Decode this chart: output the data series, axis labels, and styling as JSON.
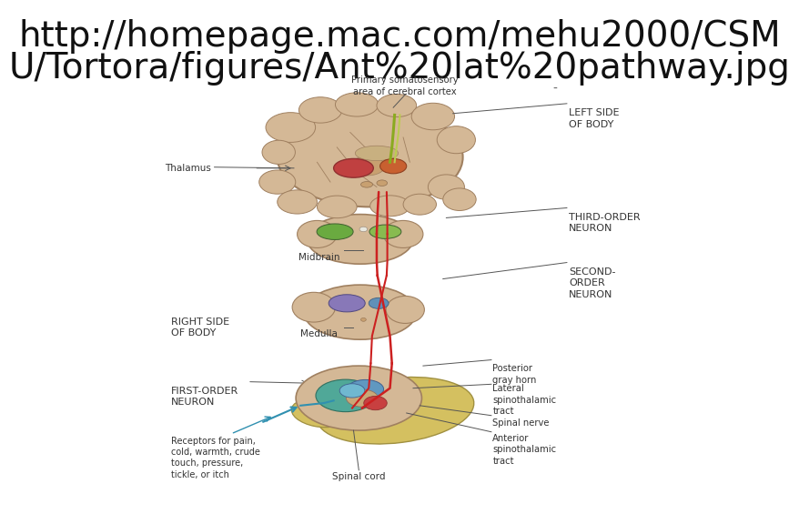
{
  "url_line1": "http://homepage.mac.com/mehu2000/CSM",
  "url_line2": "U/Tortora/figures/Ant%20lat%20pathway.jpg",
  "url_fontsize": 28,
  "url_color": "#111111",
  "bg_color": "#ffffff",
  "diagram_bg": "#f8f8f8",
  "brain_color": "#D4B896",
  "brain_edge": "#A08060",
  "thal_red": "#C04040",
  "thal_orange": "#C86030",
  "mid_green1": "#6AAA40",
  "mid_green2": "#88BB50",
  "med_purple": "#8878B8",
  "med_blue": "#6090B8",
  "sc_yellow": "#D4C060",
  "sc_teal": "#50A898",
  "sc_blue": "#6098C0",
  "sc_red_fill": "#C84040",
  "pathway_red": "#CC2020",
  "pathway_green": "#8AAA20",
  "label_color": "#333333",
  "line_color": "#555555",
  "annotations": [
    {
      "text": "Primary somatosensory\narea of cerebral cortex",
      "fx": 0.508,
      "fy": 0.825,
      "fontsize": 7.2,
      "ha": "center",
      "va": "bottom",
      "bold": false
    },
    {
      "text": "LEFT SIDE\nOF BODY",
      "fx": 0.755,
      "fy": 0.8,
      "fontsize": 8.0,
      "ha": "left",
      "va": "top",
      "bold": false
    },
    {
      "text": "Thalamus",
      "fx": 0.215,
      "fy": 0.68,
      "fontsize": 7.5,
      "ha": "right",
      "va": "center",
      "bold": false
    },
    {
      "text": "THIRD-ORDER\nNEURON",
      "fx": 0.755,
      "fy": 0.59,
      "fontsize": 8.0,
      "ha": "left",
      "va": "top",
      "bold": false
    },
    {
      "text": "Midbrain",
      "fx": 0.378,
      "fy": 0.51,
      "fontsize": 7.5,
      "ha": "center",
      "va": "top",
      "bold": false
    },
    {
      "text": "SECOND-\nORDER\nNEURON",
      "fx": 0.755,
      "fy": 0.48,
      "fontsize": 8.0,
      "ha": "left",
      "va": "top",
      "bold": false
    },
    {
      "text": "RIGHT SIDE\nOF BODY",
      "fx": 0.155,
      "fy": 0.38,
      "fontsize": 8.0,
      "ha": "left",
      "va": "top",
      "bold": false
    },
    {
      "text": "Medulla",
      "fx": 0.378,
      "fy": 0.355,
      "fontsize": 7.5,
      "ha": "center",
      "va": "top",
      "bold": false
    },
    {
      "text": "Posterior\ngray horn",
      "fx": 0.64,
      "fy": 0.285,
      "fontsize": 7.2,
      "ha": "left",
      "va": "top",
      "bold": false
    },
    {
      "text": "Lateral\nspinothalamic\ntract",
      "fx": 0.64,
      "fy": 0.245,
      "fontsize": 7.2,
      "ha": "left",
      "va": "top",
      "bold": false
    },
    {
      "text": "Spinal nerve",
      "fx": 0.64,
      "fy": 0.175,
      "fontsize": 7.2,
      "ha": "left",
      "va": "top",
      "bold": false
    },
    {
      "text": "Anterior\nspinothalamic\ntract",
      "fx": 0.64,
      "fy": 0.145,
      "fontsize": 7.2,
      "ha": "left",
      "va": "top",
      "bold": false
    },
    {
      "text": "FIRST-ORDER\nNEURON",
      "fx": 0.155,
      "fy": 0.24,
      "fontsize": 8.0,
      "ha": "left",
      "va": "top",
      "bold": false
    },
    {
      "text": "Receptors for pain,\ncold, warmth, crude\ntouch, pressure,\ntickle, or itch",
      "fx": 0.155,
      "fy": 0.14,
      "fontsize": 7.0,
      "ha": "left",
      "va": "top",
      "bold": false
    },
    {
      "text": "Spinal cord",
      "fx": 0.438,
      "fy": 0.068,
      "fontsize": 7.5,
      "ha": "center",
      "va": "top",
      "bold": false
    }
  ]
}
